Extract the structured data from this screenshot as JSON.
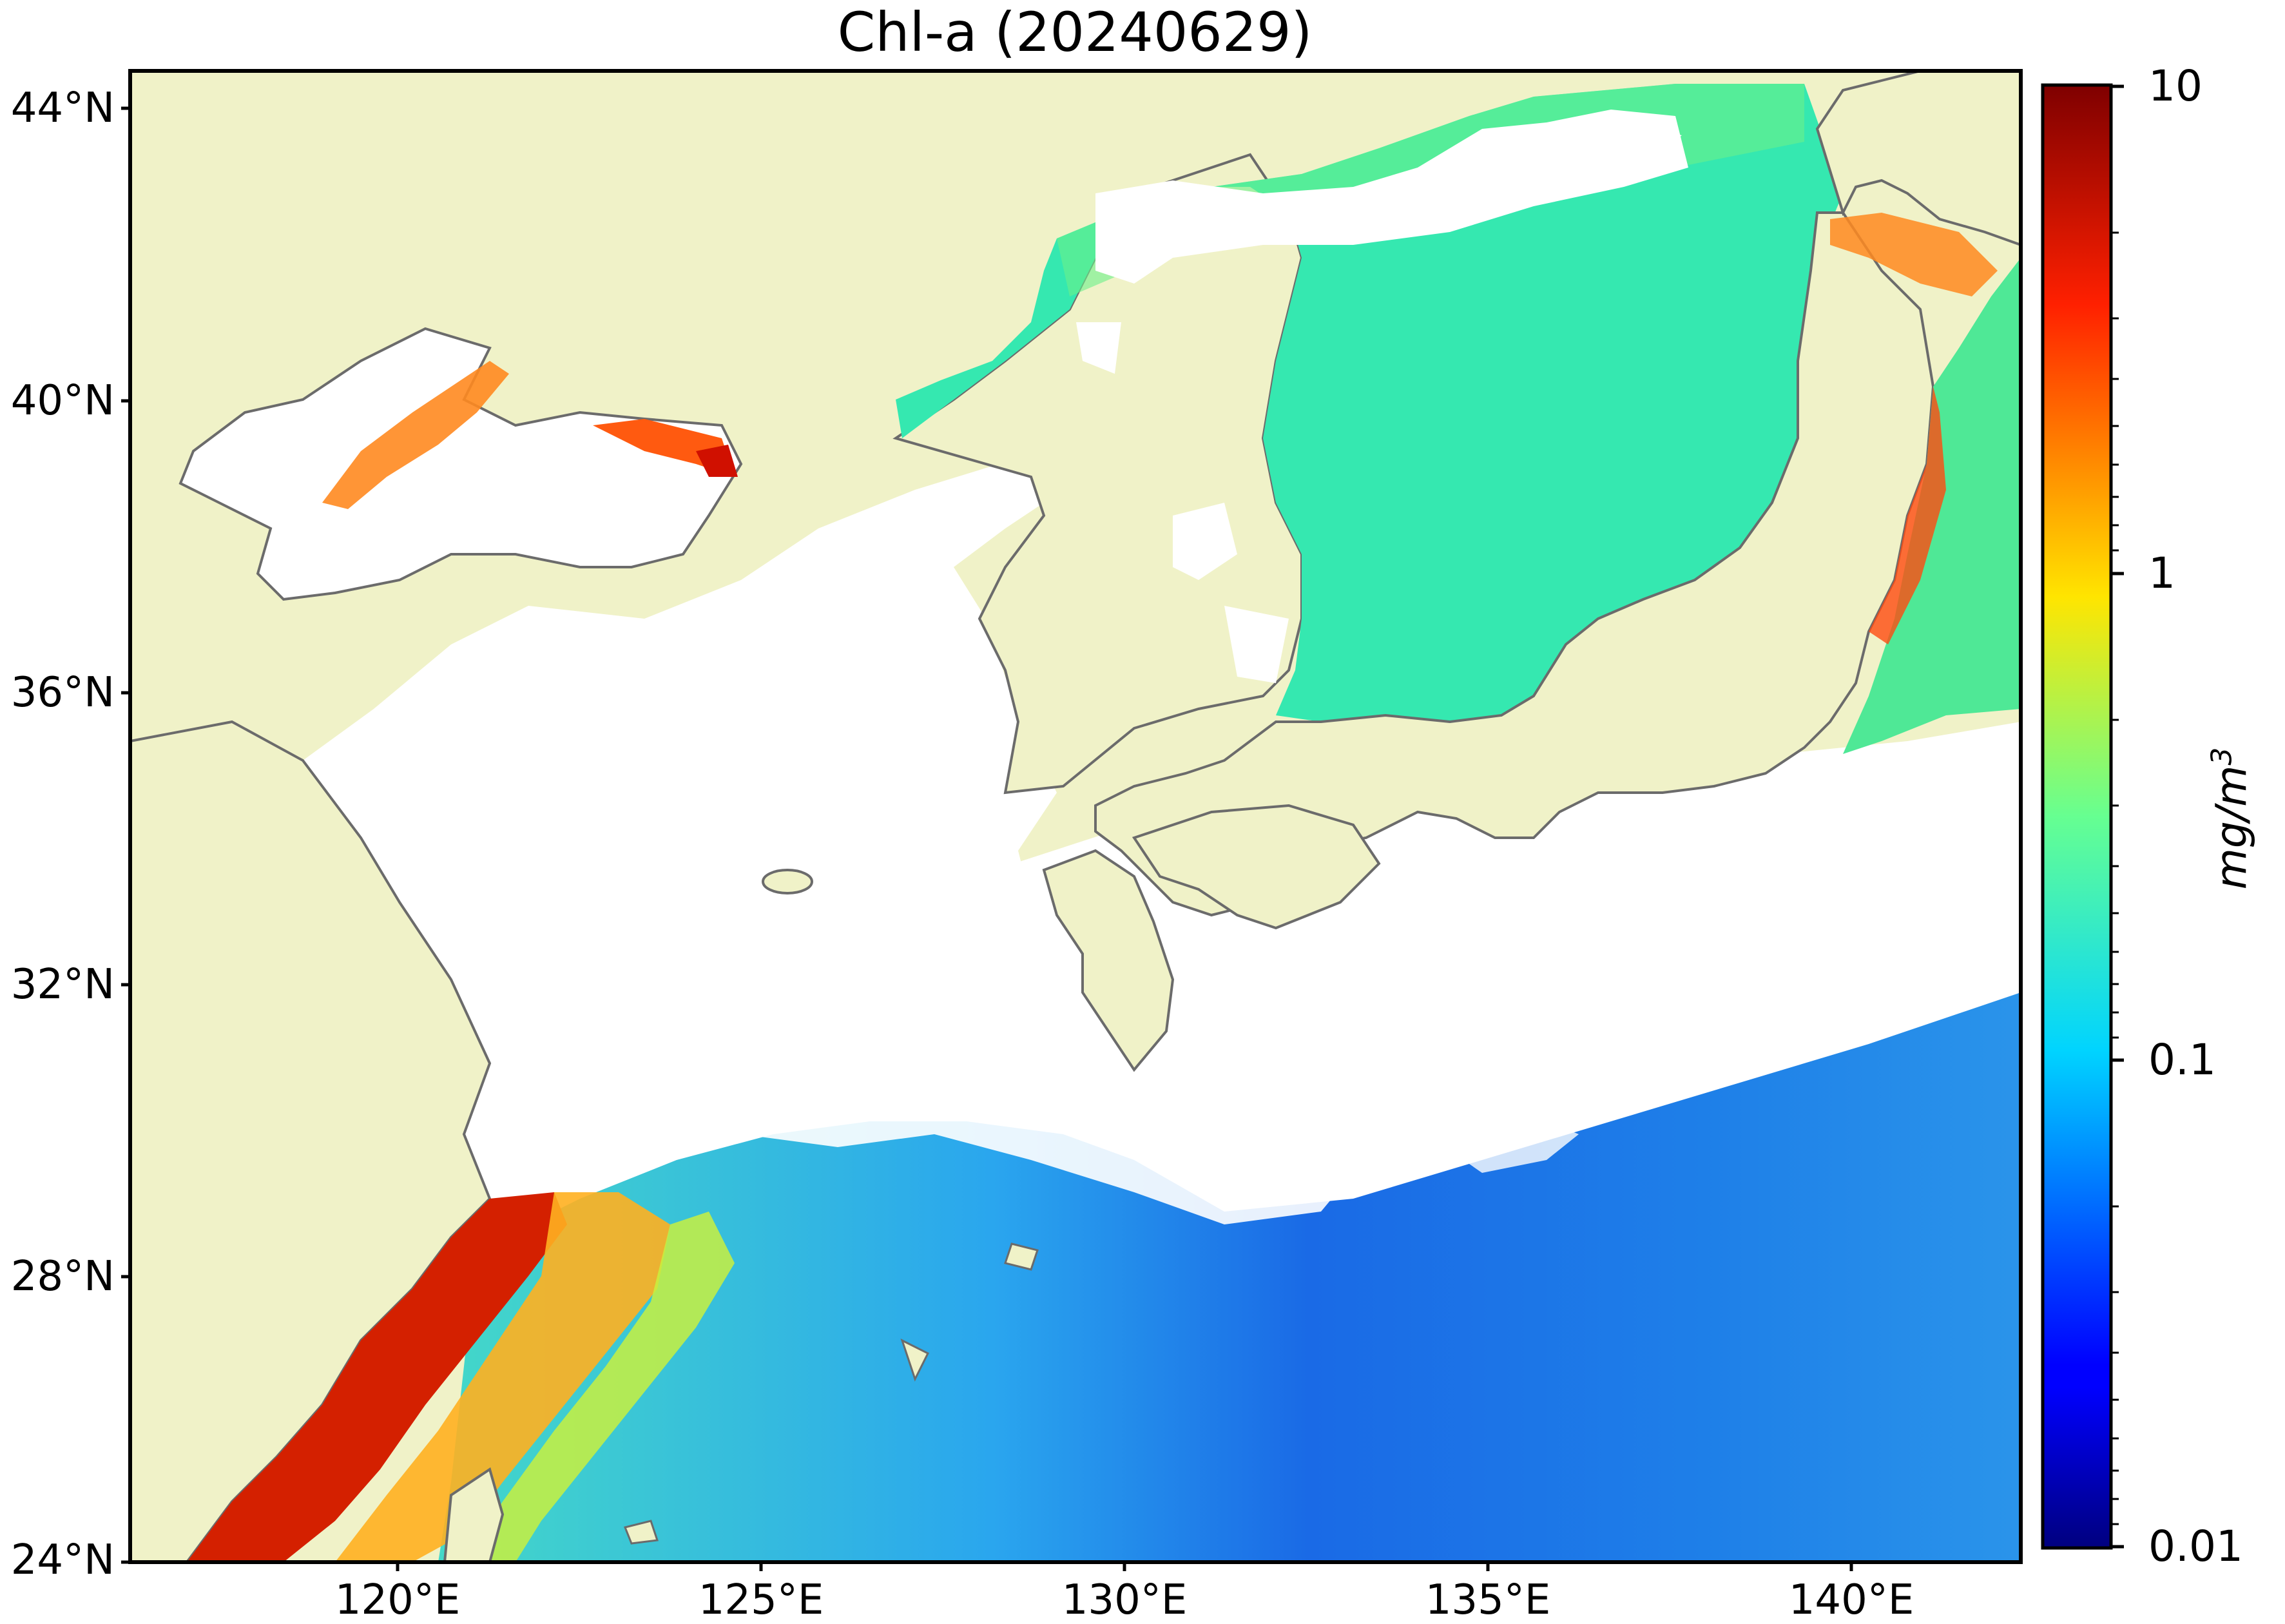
{
  "map": {
    "title": "Chl-a (20240629)",
    "lat_labels": [
      "44°N",
      "40°N",
      "36°N",
      "32°N",
      "28°N",
      "24°N"
    ],
    "lon_labels": [
      "120°E",
      "125°E",
      "130°E",
      "135°E",
      "140°E"
    ],
    "extent": {
      "lon_min": 117,
      "lon_max": 143,
      "lat_min": 24,
      "lat_max": 44.4
    },
    "colors": {
      "land": "#f0f2c8",
      "no_data": "#ffffff",
      "coastline": "#6b6b6b"
    }
  },
  "colorbar": {
    "ticks": [
      "10",
      "1",
      "0.1",
      "0.01"
    ],
    "label_main": "mg/m",
    "label_exp": "3",
    "scale": "log",
    "range": [
      0.01,
      10
    ],
    "colormap": "jet"
  }
}
